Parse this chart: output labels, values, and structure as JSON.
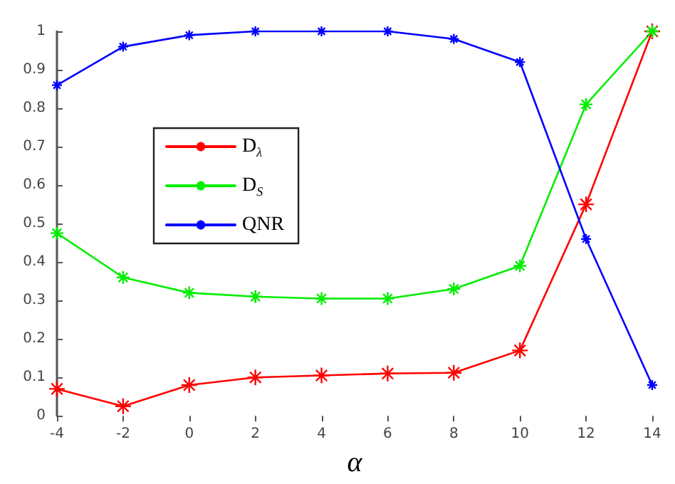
{
  "chart_data": {
    "type": "line",
    "xlabel": "α",
    "x": [
      -4,
      -2,
      0,
      2,
      4,
      6,
      8,
      10,
      12,
      14
    ],
    "series": [
      {
        "name": "D$_{λ}$",
        "color": "#ff0000",
        "values": [
          0.07,
          0.025,
          0.08,
          0.1,
          0.105,
          0.11,
          0.112,
          0.17,
          0.55,
          1.0
        ]
      },
      {
        "name": "D$_{S}$",
        "color": "#00ee00",
        "values": [
          0.475,
          0.36,
          0.32,
          0.31,
          0.305,
          0.305,
          0.33,
          0.39,
          0.81,
          1.0
        ]
      },
      {
        "name": "QNR",
        "color": "#0000ff",
        "values": [
          0.86,
          0.96,
          0.99,
          1.0,
          1.0,
          1.0,
          0.98,
          0.92,
          0.46,
          0.08
        ]
      }
    ],
    "xlim": [
      -4,
      14
    ],
    "xticks": [
      -4,
      -2,
      0,
      2,
      4,
      6,
      8,
      10,
      12,
      14
    ],
    "ylim": [
      0,
      1
    ],
    "yticks": [
      0,
      0.1,
      0.2,
      0.3,
      0.4,
      0.5,
      0.6,
      0.7,
      0.8,
      0.9,
      1
    ],
    "grid": false,
    "legend": "left",
    "marker": "cross",
    "line_style": "solid"
  }
}
